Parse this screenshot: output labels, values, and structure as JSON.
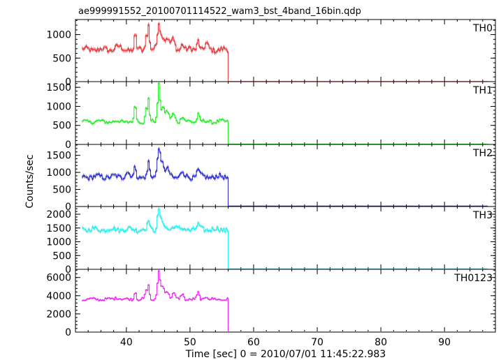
{
  "chart_data": {
    "type": "line",
    "title": "ae999991552_20100701114522_wam3_bst_4band_16bin.qdp",
    "xlabel": "Time [sec] 0 = 2010/07/01 11:45:22.983",
    "ylabel": "Counts/sec",
    "xlim": [
      32,
      98
    ],
    "x_ticks": [
      40,
      50,
      60,
      70,
      80,
      90
    ],
    "x_tick_labels": [
      "40",
      "50",
      "60",
      "70",
      "80",
      "90"
    ],
    "x_sampling": {
      "start": 33.0,
      "step": 0.2,
      "burst_end": 56.0
    },
    "grid": false,
    "panels": [
      {
        "name": "TH0",
        "color": "#e8383d",
        "ylim": [
          0,
          1320
        ],
        "y_ticks": [
          0,
          500,
          1000
        ],
        "y_tick_labels": [
          "0",
          "500",
          "1000"
        ],
        "base": 680,
        "noise": 55,
        "post_level": 5,
        "peaks": [
          {
            "x": 38.5,
            "h": 60,
            "w": 0.6
          },
          {
            "x": 41.3,
            "h": 340,
            "w": 0.18
          },
          {
            "x": 43.0,
            "h": 300,
            "w": 0.22
          },
          {
            "x": 43.4,
            "h": 520,
            "w": 0.2
          },
          {
            "x": 45.0,
            "h": 560,
            "w": 0.3
          },
          {
            "x": 45.6,
            "h": 300,
            "w": 0.35
          },
          {
            "x": 46.3,
            "h": 260,
            "w": 0.4
          },
          {
            "x": 47.2,
            "h": 200,
            "w": 0.4
          },
          {
            "x": 48.7,
            "h": 140,
            "w": 0.3
          },
          {
            "x": 51.2,
            "h": 220,
            "w": 0.25
          },
          {
            "x": 52.5,
            "h": 120,
            "w": 0.3
          }
        ]
      },
      {
        "name": "TH1",
        "color": "#22ee22",
        "ylim": [
          0,
          1650
        ],
        "y_ticks": [
          0,
          500,
          1000,
          1500
        ],
        "y_tick_labels": [
          "0",
          "500",
          "1000",
          "1500"
        ],
        "base": 600,
        "noise": 45,
        "post_level": 10,
        "peaks": [
          {
            "x": 41.3,
            "h": 520,
            "w": 0.18
          },
          {
            "x": 43.0,
            "h": 350,
            "w": 0.2
          },
          {
            "x": 43.4,
            "h": 620,
            "w": 0.18
          },
          {
            "x": 45.0,
            "h": 960,
            "w": 0.25
          },
          {
            "x": 45.6,
            "h": 380,
            "w": 0.35
          },
          {
            "x": 46.3,
            "h": 260,
            "w": 0.4
          },
          {
            "x": 47.3,
            "h": 200,
            "w": 0.35
          },
          {
            "x": 48.7,
            "h": 150,
            "w": 0.3
          },
          {
            "x": 51.2,
            "h": 200,
            "w": 0.25
          }
        ]
      },
      {
        "name": "TH2",
        "color": "#2a2ad8",
        "ylim": [
          0,
          1820
        ],
        "y_ticks": [
          0,
          500,
          1000,
          1500
        ],
        "y_tick_labels": [
          "0",
          "500",
          "1000",
          "1500"
        ],
        "base": 870,
        "noise": 70,
        "post_level": 15,
        "peaks": [
          {
            "x": 40.0,
            "h": 150,
            "w": 0.4
          },
          {
            "x": 41.3,
            "h": 300,
            "w": 0.2
          },
          {
            "x": 43.4,
            "h": 420,
            "w": 0.2
          },
          {
            "x": 45.0,
            "h": 900,
            "w": 0.3
          },
          {
            "x": 45.6,
            "h": 380,
            "w": 0.35
          },
          {
            "x": 46.4,
            "h": 200,
            "w": 0.4
          },
          {
            "x": 48.7,
            "h": 150,
            "w": 0.3
          },
          {
            "x": 51.2,
            "h": 180,
            "w": 0.3
          }
        ]
      },
      {
        "name": "TH3",
        "color": "#22f0f0",
        "ylim": [
          0,
          2280
        ],
        "y_ticks": [
          0,
          500,
          1000,
          1500,
          2000
        ],
        "y_tick_labels": [
          "0",
          "500",
          "1000",
          "1500",
          "2000"
        ],
        "base": 1450,
        "noise": 85,
        "post_level": 20,
        "peaks": [
          {
            "x": 43.4,
            "h": 350,
            "w": 0.2
          },
          {
            "x": 45.0,
            "h": 700,
            "w": 0.3
          },
          {
            "x": 45.6,
            "h": 250,
            "w": 0.35
          },
          {
            "x": 47.4,
            "h": 150,
            "w": 0.4
          },
          {
            "x": 51.2,
            "h": 150,
            "w": 0.3
          }
        ]
      },
      {
        "name": "TH0123",
        "color": "#ee22ee",
        "ylim": [
          0,
          6900
        ],
        "y_ticks": [
          0,
          2000,
          4000,
          6000
        ],
        "y_tick_labels": [
          "0",
          "2000",
          "4000",
          "6000"
        ],
        "base": 3600,
        "noise": 140,
        "post_level": 40,
        "peaks": [
          {
            "x": 38.5,
            "h": 200,
            "w": 0.6
          },
          {
            "x": 41.3,
            "h": 1100,
            "w": 0.18
          },
          {
            "x": 43.0,
            "h": 1000,
            "w": 0.2
          },
          {
            "x": 43.4,
            "h": 1700,
            "w": 0.18
          },
          {
            "x": 45.0,
            "h": 3000,
            "w": 0.28
          },
          {
            "x": 45.6,
            "h": 1300,
            "w": 0.35
          },
          {
            "x": 46.3,
            "h": 900,
            "w": 0.4
          },
          {
            "x": 47.3,
            "h": 700,
            "w": 0.35
          },
          {
            "x": 48.7,
            "h": 600,
            "w": 0.3
          },
          {
            "x": 51.2,
            "h": 700,
            "w": 0.25
          },
          {
            "x": 52.5,
            "h": 350,
            "w": 0.3
          }
        ]
      }
    ]
  }
}
